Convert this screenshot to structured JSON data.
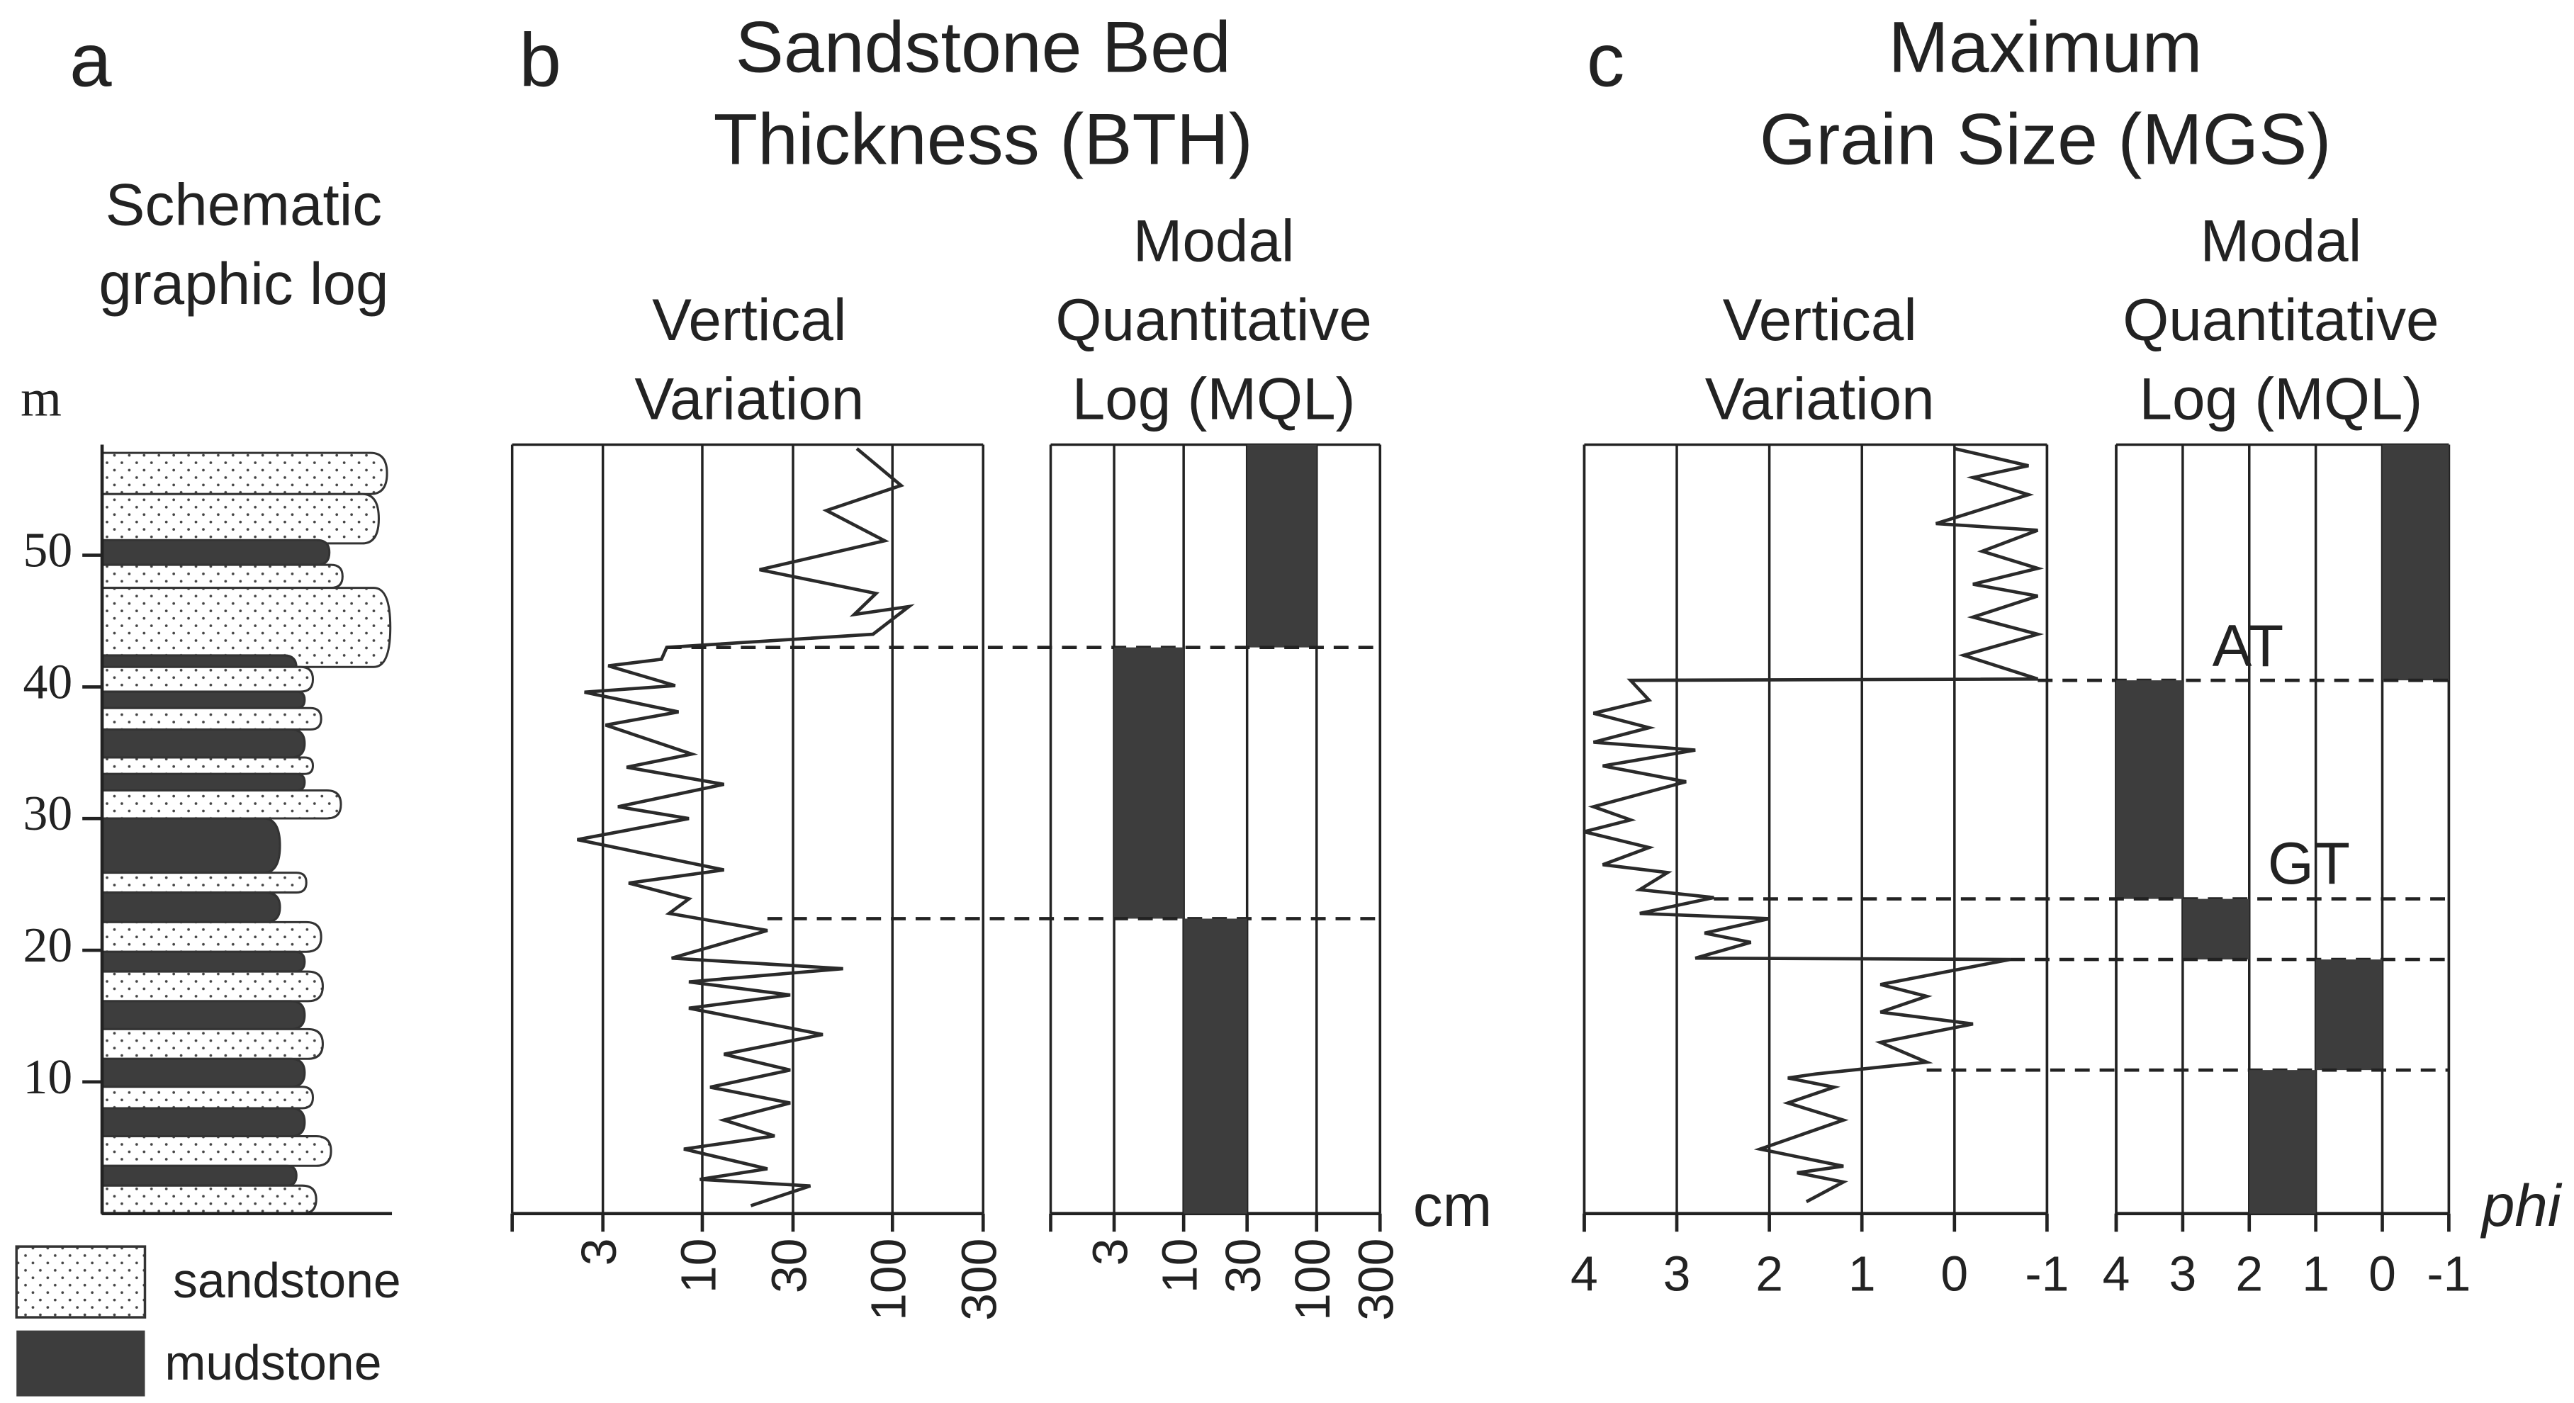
{
  "panel_a": {
    "label": "a",
    "title": [
      "Schematic",
      "graphic log"
    ],
    "unit": "m",
    "ylim": [
      0,
      58.4
    ],
    "yticks": [
      10,
      20,
      30,
      40,
      50
    ],
    "legend": [
      "sandstone",
      "mudstone"
    ]
  },
  "chart_data": [
    {
      "type": "line",
      "label": "b",
      "title": [
        "Sandstone Bed",
        "Thickness (BTH)"
      ],
      "subtitle": [
        "Vertical",
        "Variation"
      ],
      "x": [
        65,
        111,
        45,
        91,
        20,
        82,
        63,
        122,
        79,
        6.5,
        6.1,
        3.2,
        7.2,
        2.4,
        7.5,
        3.1,
        8.8,
        4.0,
        13,
        3.6,
        8.5,
        2.2,
        13,
        4.1,
        8.5,
        6.7,
        22,
        6.9,
        55,
        8.5,
        29,
        8.5,
        43,
        13,
        29,
        11,
        29,
        13,
        24,
        8.0,
        22,
        9.7,
        37,
        18
      ],
      "y": [
        58.1,
        55.3,
        53.4,
        51.1,
        48.9,
        47.1,
        45.5,
        46.1,
        44,
        43,
        42.1,
        41.6,
        40.1,
        39.6,
        38.1,
        37.1,
        34.9,
        33.9,
        32.6,
        30.9,
        30,
        28.4,
        26.1,
        25.1,
        23.9,
        22.8,
        21.5,
        19.4,
        18.6,
        17.6,
        16.6,
        15.6,
        13.6,
        12.1,
        10.9,
        9.6,
        8.4,
        7.1,
        5.9,
        4.9,
        3.4,
        2.6,
        2.1,
        0.6
      ],
      "xlim": [
        1,
        300
      ],
      "xticks": [
        3,
        10,
        30,
        100,
        300
      ],
      "xscale": "log",
      "ylim": [
        0,
        58.4
      ],
      "color": "#2a2a2a"
    },
    {
      "type": "blocks",
      "subtitle": [
        "Modal",
        "Quantitative",
        "Log (MQL)"
      ],
      "blocks": [
        {
          "x": [
            30,
            100
          ],
          "y": [
            43,
            58.4
          ]
        },
        {
          "x": [
            3,
            10
          ],
          "y": [
            22.4,
            43
          ]
        },
        {
          "x": [
            10,
            30
          ],
          "y": [
            0,
            22.4
          ]
        }
      ],
      "xlim": [
        1,
        300
      ],
      "xticks": [
        3,
        10,
        30,
        100,
        300
      ],
      "xscale": "log",
      "ylim": [
        0,
        58.4
      ],
      "xlabel": "cm",
      "color": "#3d3d3d"
    },
    {
      "type": "line",
      "label": "c",
      "title": [
        "Maximum",
        "Grain Size (MGS)"
      ],
      "subtitle": [
        "Vertical",
        "Variation"
      ],
      "x": [
        0.0,
        -0.8,
        -0.2,
        -0.8,
        0.2,
        -0.9,
        -0.3,
        -0.9,
        -0.2,
        -0.9,
        -0.2,
        -0.9,
        -0.1,
        -0.9,
        3.5,
        3.3,
        3.9,
        3.3,
        3.9,
        2.8,
        3.8,
        2.9,
        3.9,
        3.5,
        4.0,
        3.3,
        3.8,
        3.1,
        3.4,
        2.6,
        3.4,
        2.0,
        2.7,
        2.2,
        2.8,
        -0.6,
        0.8,
        0.3,
        0.8,
        -0.2,
        0.8,
        0.3,
        1.5,
        1.8,
        1.3,
        1.8,
        1.2,
        2.1,
        1.2,
        1.7,
        1.2,
        1.6
      ],
      "y": [
        58.1,
        56.8,
        55.9,
        54.6,
        52.4,
        51.9,
        50.3,
        49,
        47.8,
        46.9,
        45.3,
        44,
        42.4,
        40.6,
        40.5,
        39,
        38,
        36.9,
        35.8,
        35.2,
        34,
        32.8,
        30.9,
        29.9,
        29,
        27.8,
        26.5,
        25.9,
        24.6,
        24,
        22.8,
        22.4,
        21.3,
        20.6,
        19.4,
        19.3,
        17.4,
        16.5,
        15.3,
        14.4,
        13,
        11.5,
        10.6,
        10.3,
        9.6,
        8.4,
        7.1,
        4.9,
        3.6,
        3.1,
        2.4,
        0.9
      ],
      "xlim": [
        4,
        -1
      ],
      "xticks": [
        4,
        3,
        2,
        1,
        0,
        -1
      ],
      "xscale": "linear",
      "ylim": [
        0,
        58.4
      ],
      "color": "#2a2a2a"
    },
    {
      "type": "blocks",
      "subtitle": [
        "Modal",
        "Quantitative",
        "Log (MQL)"
      ],
      "blocks": [
        {
          "x": [
            0,
            -1
          ],
          "y": [
            40.5,
            58.4
          ]
        },
        {
          "x": [
            4,
            3
          ],
          "y": [
            23.9,
            40.5
          ]
        },
        {
          "x": [
            3,
            2
          ],
          "y": [
            19.3,
            23.9
          ]
        },
        {
          "x": [
            1,
            0
          ],
          "y": [
            10.9,
            19.3
          ]
        },
        {
          "x": [
            2,
            1
          ],
          "y": [
            0,
            10.9
          ]
        }
      ],
      "xlim": [
        4,
        -1
      ],
      "xticks": [
        4,
        3,
        2,
        1,
        0,
        -1
      ],
      "xscale": "linear",
      "ylim": [
        0,
        58.4
      ],
      "xlabel": "phi",
      "annotations": [
        "AT",
        "GT"
      ],
      "color": "#3d3d3d"
    }
  ]
}
